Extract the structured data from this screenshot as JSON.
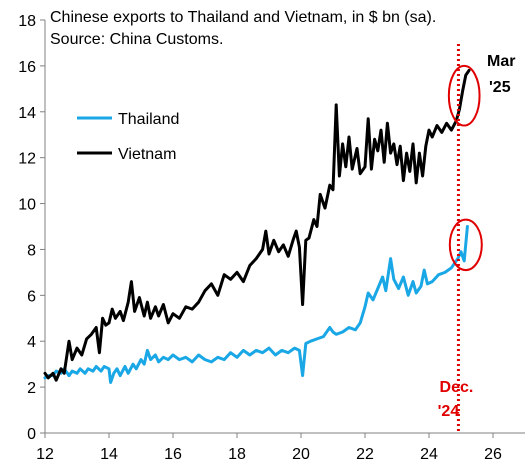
{
  "chart_data": {
    "type": "line",
    "title": "Chinese exports to Thailand and Vietnam, in $ bn (sa).",
    "subtitle": "Source: China Customs.",
    "xlabel": "",
    "ylabel": "",
    "xlim": [
      12,
      27
    ],
    "ylim": [
      0,
      18
    ],
    "xticks": [
      12,
      14,
      16,
      18,
      20,
      22,
      24,
      26
    ],
    "yticks": [
      0,
      2,
      4,
      6,
      8,
      10,
      12,
      14,
      16,
      18
    ],
    "grid": false,
    "legend": {
      "placement": "upper-left"
    },
    "series": [
      {
        "name": "Thailand",
        "color": "#1aa7e6",
        "points": [
          [
            12.0,
            2.4
          ],
          [
            12.1,
            2.5
          ],
          [
            12.25,
            2.5
          ],
          [
            12.35,
            2.7
          ],
          [
            12.5,
            2.6
          ],
          [
            12.6,
            2.8
          ],
          [
            12.75,
            2.5
          ],
          [
            12.85,
            2.7
          ],
          [
            13.0,
            2.6
          ],
          [
            13.1,
            2.8
          ],
          [
            13.25,
            2.6
          ],
          [
            13.35,
            2.8
          ],
          [
            13.5,
            2.7
          ],
          [
            13.6,
            2.9
          ],
          [
            13.75,
            2.7
          ],
          [
            13.85,
            2.9
          ],
          [
            14.0,
            2.8
          ],
          [
            14.05,
            2.2
          ],
          [
            14.15,
            2.6
          ],
          [
            14.25,
            2.8
          ],
          [
            14.35,
            2.5
          ],
          [
            14.5,
            2.9
          ],
          [
            14.6,
            2.6
          ],
          [
            14.75,
            3.0
          ],
          [
            14.85,
            2.8
          ],
          [
            15.0,
            3.2
          ],
          [
            15.1,
            3.0
          ],
          [
            15.2,
            3.6
          ],
          [
            15.3,
            3.2
          ],
          [
            15.45,
            3.4
          ],
          [
            15.55,
            3.1
          ],
          [
            15.7,
            3.3
          ],
          [
            15.85,
            3.2
          ],
          [
            16.0,
            3.4
          ],
          [
            16.2,
            3.2
          ],
          [
            16.4,
            3.3
          ],
          [
            16.6,
            3.1
          ],
          [
            16.8,
            3.4
          ],
          [
            17.0,
            3.2
          ],
          [
            17.2,
            3.1
          ],
          [
            17.4,
            3.3
          ],
          [
            17.6,
            3.2
          ],
          [
            17.8,
            3.5
          ],
          [
            18.0,
            3.3
          ],
          [
            18.2,
            3.6
          ],
          [
            18.4,
            3.4
          ],
          [
            18.6,
            3.6
          ],
          [
            18.8,
            3.5
          ],
          [
            19.0,
            3.7
          ],
          [
            19.2,
            3.4
          ],
          [
            19.4,
            3.6
          ],
          [
            19.6,
            3.5
          ],
          [
            19.8,
            3.7
          ],
          [
            19.95,
            3.6
          ],
          [
            20.05,
            2.5
          ],
          [
            20.15,
            3.9
          ],
          [
            20.3,
            4.0
          ],
          [
            20.5,
            4.1
          ],
          [
            20.7,
            4.2
          ],
          [
            20.9,
            4.6
          ],
          [
            21.0,
            4.4
          ],
          [
            21.1,
            4.3
          ],
          [
            21.3,
            4.4
          ],
          [
            21.5,
            4.6
          ],
          [
            21.7,
            4.5
          ],
          [
            21.85,
            4.8
          ],
          [
            22.0,
            5.5
          ],
          [
            22.1,
            6.1
          ],
          [
            22.25,
            5.8
          ],
          [
            22.4,
            6.3
          ],
          [
            22.55,
            6.8
          ],
          [
            22.65,
            6.2
          ],
          [
            22.8,
            7.6
          ],
          [
            22.9,
            6.7
          ],
          [
            23.05,
            6.3
          ],
          [
            23.2,
            6.8
          ],
          [
            23.35,
            6.0
          ],
          [
            23.5,
            6.6
          ],
          [
            23.6,
            6.1
          ],
          [
            23.75,
            6.4
          ],
          [
            23.85,
            7.1
          ],
          [
            23.95,
            6.5
          ],
          [
            24.1,
            6.6
          ],
          [
            24.3,
            6.9
          ],
          [
            24.5,
            7.0
          ],
          [
            24.7,
            7.2
          ],
          [
            24.9,
            7.6
          ],
          [
            25.0,
            7.9
          ],
          [
            25.1,
            7.5
          ],
          [
            25.2,
            9.0
          ]
        ]
      },
      {
        "name": "Vietnam",
        "color": "#000000",
        "points": [
          [
            12.0,
            2.6
          ],
          [
            12.1,
            2.4
          ],
          [
            12.25,
            2.6
          ],
          [
            12.35,
            2.3
          ],
          [
            12.5,
            2.8
          ],
          [
            12.6,
            2.6
          ],
          [
            12.75,
            4.0
          ],
          [
            12.85,
            3.2
          ],
          [
            13.0,
            3.7
          ],
          [
            13.15,
            3.4
          ],
          [
            13.3,
            4.1
          ],
          [
            13.45,
            4.3
          ],
          [
            13.6,
            4.6
          ],
          [
            13.7,
            3.5
          ],
          [
            13.8,
            5.0
          ],
          [
            13.9,
            4.7
          ],
          [
            14.0,
            4.8
          ],
          [
            14.1,
            5.4
          ],
          [
            14.2,
            5.0
          ],
          [
            14.35,
            5.3
          ],
          [
            14.45,
            4.9
          ],
          [
            14.6,
            5.7
          ],
          [
            14.7,
            6.6
          ],
          [
            14.8,
            5.3
          ],
          [
            14.95,
            5.9
          ],
          [
            15.1,
            5.1
          ],
          [
            15.2,
            5.7
          ],
          [
            15.3,
            5.0
          ],
          [
            15.45,
            5.5
          ],
          [
            15.55,
            5.1
          ],
          [
            15.7,
            5.6
          ],
          [
            15.85,
            4.8
          ],
          [
            16.0,
            5.2
          ],
          [
            16.2,
            5.0
          ],
          [
            16.4,
            5.5
          ],
          [
            16.6,
            5.4
          ],
          [
            16.8,
            5.7
          ],
          [
            17.0,
            6.2
          ],
          [
            17.2,
            6.5
          ],
          [
            17.4,
            6.0
          ],
          [
            17.6,
            6.9
          ],
          [
            17.8,
            6.7
          ],
          [
            18.0,
            7.0
          ],
          [
            18.2,
            6.6
          ],
          [
            18.4,
            7.3
          ],
          [
            18.6,
            7.6
          ],
          [
            18.8,
            8.0
          ],
          [
            18.9,
            8.8
          ],
          [
            19.0,
            7.8
          ],
          [
            19.15,
            8.4
          ],
          [
            19.3,
            7.9
          ],
          [
            19.45,
            8.2
          ],
          [
            19.6,
            7.7
          ],
          [
            19.75,
            8.4
          ],
          [
            19.85,
            8.8
          ],
          [
            19.95,
            8.1
          ],
          [
            20.05,
            5.6
          ],
          [
            20.15,
            8.4
          ],
          [
            20.25,
            8.5
          ],
          [
            20.4,
            9.3
          ],
          [
            20.5,
            9.0
          ],
          [
            20.6,
            10.4
          ],
          [
            20.75,
            9.8
          ],
          [
            20.9,
            10.8
          ],
          [
            21.0,
            10.6
          ],
          [
            21.1,
            14.3
          ],
          [
            21.2,
            11.2
          ],
          [
            21.3,
            12.6
          ],
          [
            21.4,
            11.6
          ],
          [
            21.5,
            12.9
          ],
          [
            21.6,
            11.5
          ],
          [
            21.75,
            12.4
          ],
          [
            21.85,
            11.3
          ],
          [
            22.0,
            11.6
          ],
          [
            22.1,
            13.7
          ],
          [
            22.2,
            11.5
          ],
          [
            22.3,
            12.8
          ],
          [
            22.4,
            12.3
          ],
          [
            22.5,
            13.2
          ],
          [
            22.6,
            11.8
          ],
          [
            22.7,
            13.5
          ],
          [
            22.8,
            12.2
          ],
          [
            22.9,
            12.6
          ],
          [
            23.0,
            11.7
          ],
          [
            23.1,
            12.5
          ],
          [
            23.2,
            11.0
          ],
          [
            23.3,
            12.2
          ],
          [
            23.4,
            11.4
          ],
          [
            23.5,
            12.6
          ],
          [
            23.6,
            10.9
          ],
          [
            23.7,
            12.2
          ],
          [
            23.8,
            11.2
          ],
          [
            23.9,
            12.5
          ],
          [
            24.0,
            13.2
          ],
          [
            24.1,
            12.9
          ],
          [
            24.25,
            13.4
          ],
          [
            24.4,
            13.1
          ],
          [
            24.55,
            13.5
          ],
          [
            24.7,
            13.2
          ],
          [
            24.85,
            13.6
          ],
          [
            24.95,
            14.1
          ],
          [
            25.05,
            14.9
          ],
          [
            25.15,
            15.6
          ],
          [
            25.25,
            15.8
          ]
        ]
      }
    ],
    "marker": {
      "x": 24.92,
      "label_line1": "Dec.",
      "label_line2": "'24",
      "color": "#e00000"
    },
    "annotations": [
      {
        "id": "mar",
        "text_line1": "Mar",
        "text_line2": "'25"
      }
    ],
    "highlight_ellipses": [
      {
        "series": "Vietnam",
        "cx": 25.1,
        "cy": 14.7,
        "rx": 0.48,
        "ry": 1.3,
        "color": "#e00000"
      },
      {
        "series": "Thailand",
        "cx": 25.15,
        "cy": 8.2,
        "rx": 0.5,
        "ry": 1.1,
        "color": "#e00000"
      }
    ]
  }
}
